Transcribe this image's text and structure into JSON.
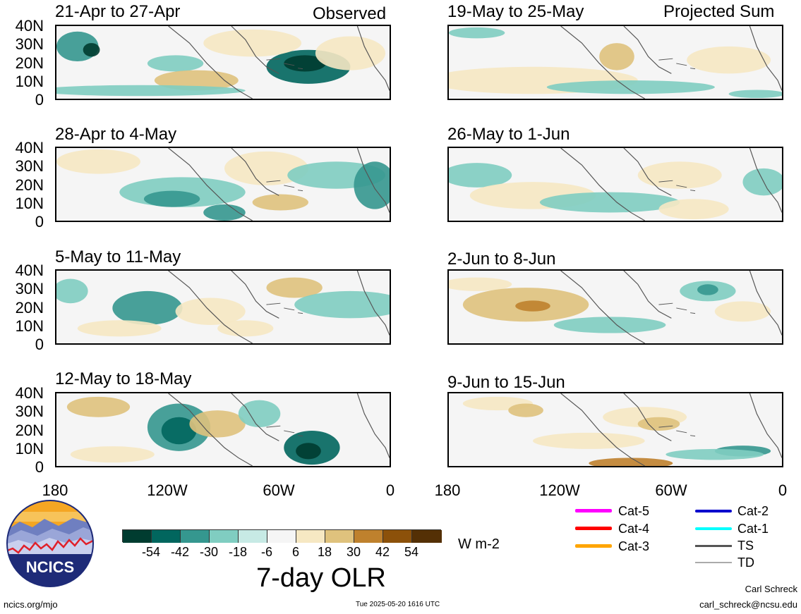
{
  "panels_left": [
    {
      "title": "21-Apr to 27-Apr",
      "tag": "Observed"
    },
    {
      "title": "28-Apr to 4-May",
      "tag": ""
    },
    {
      "title": "5-May to 11-May",
      "tag": ""
    },
    {
      "title": "12-May to 18-May",
      "tag": ""
    }
  ],
  "panels_right": [
    {
      "title": "19-May to 25-May",
      "tag": "Projected Sum"
    },
    {
      "title": "26-May to 1-Jun",
      "tag": ""
    },
    {
      "title": "2-Jun to 8-Jun",
      "tag": ""
    },
    {
      "title": "9-Jun to 15-Jun",
      "tag": ""
    }
  ],
  "lat_labels": [
    "40N",
    "30N",
    "20N",
    "10N",
    "0"
  ],
  "lon_labels": [
    "180",
    "120W",
    "60W",
    "0"
  ],
  "colorbar": {
    "title": "7-day OLR",
    "units": "W m-2",
    "tick_labels": [
      "-54",
      "-42",
      "-30",
      "-18",
      "-6",
      "6",
      "18",
      "30",
      "42",
      "54"
    ],
    "colors": [
      "#003c30",
      "#01665e",
      "#35978f",
      "#80cdc1",
      "#c7eae5",
      "#f5f5f5",
      "#f6e8c3",
      "#dfc27d",
      "#bf812d",
      "#8c510a",
      "#543005"
    ]
  },
  "storm_legend": [
    {
      "label": "Cat-5",
      "color": "#ff00ff"
    },
    {
      "label": "Cat-4",
      "color": "#ff0000"
    },
    {
      "label": "Cat-3",
      "color": "#ffa500"
    },
    {
      "label": "Cat-2",
      "color": "#0000cd"
    },
    {
      "label": "Cat-1",
      "color": "#00ffff"
    },
    {
      "label": "TS",
      "color": "#555555"
    },
    {
      "label": "TD",
      "color": "#aaaaaa"
    }
  ],
  "logo_text": "NCICS",
  "footer": {
    "site": "ncics.org/mjo",
    "timestamp": "Tue 2025-05-20 1616 UTC",
    "author": "Carl Schreck",
    "email": "carl_schreck@ncsu.edu"
  }
}
